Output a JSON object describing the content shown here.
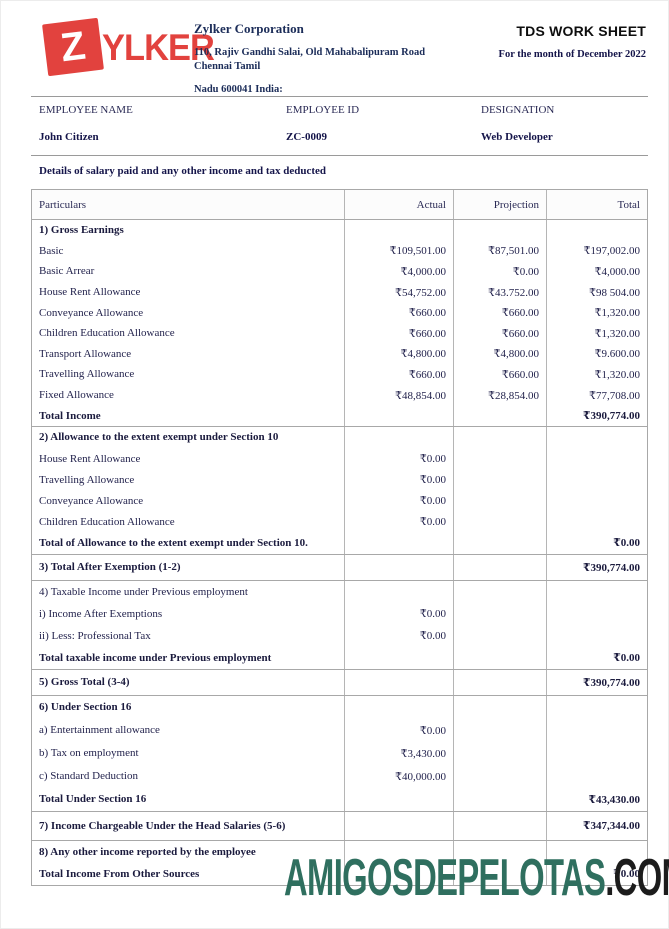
{
  "header": {
    "logo_z": "Z",
    "logo_text": "YLKER",
    "company_name": "Zylker Corporation",
    "address_line1": "110, Rajiv Gandhi Salai, Old Mahabalipuram Road Chennai Tamil",
    "address_line2": "Nadu 600041 India:",
    "doc_title": "TDS WORK SHEET",
    "doc_subtitle": "For the month of December 2022"
  },
  "employee": {
    "name_label": "EMPLOYEE NAME",
    "name": "John Citizen",
    "id_label": "EMPLOYEE ID",
    "id": "ZC-0009",
    "designation_label": "DESIGNATION",
    "designation": "Web Developer"
  },
  "details_note": "Details of salary paid and any other income and tax deducted",
  "table": {
    "columns": [
      "Particulars",
      "Actual",
      "Projection",
      "Total"
    ],
    "sections": [
      {
        "rows": [
          {
            "label": "1) Gross Earnings",
            "bold": true
          },
          {
            "label": "Basic",
            "actual": "₹109,501.00",
            "projection": "₹87,501.00",
            "total": "₹197,002.00"
          },
          {
            "label": "Basic Arrear",
            "actual": "₹4,000.00",
            "projection": "₹0.00",
            "total": "₹4,000.00"
          },
          {
            "label": "House Rent Allowance",
            "actual": "₹54,752.00",
            "projection": "₹43.752.00",
            "total": "₹98 504.00"
          },
          {
            "label": "Conveyance Allowance",
            "actual": "₹660.00",
            "projection": "₹660.00",
            "total": "₹1,320.00"
          },
          {
            "label": "Children Education Allowance",
            "actual": "₹660.00",
            "projection": "₹660.00",
            "total": "₹1,320.00"
          },
          {
            "label": "Transport Allowance",
            "actual": "₹4,800.00",
            "projection": "₹4,800.00",
            "total": "₹9.600.00"
          },
          {
            "label": "Travelling Allowance",
            "actual": "₹660.00",
            "projection": "₹660.00",
            "total": "₹1,320.00"
          },
          {
            "label": "Fixed Allowance",
            "actual": "₹48,854.00",
            "projection": "₹28,854.00",
            "total": "₹77,708.00"
          },
          {
            "label": "Total Income",
            "bold": true,
            "total": "₹390,774.00"
          }
        ]
      },
      {
        "rows": [
          {
            "label": "2) Allowance to the extent exempt under Section 10",
            "bold": true
          },
          {
            "label": "House Rent Allowance",
            "actual": "₹0.00"
          },
          {
            "label": "Travelling Allowance",
            "actual": "₹0.00"
          },
          {
            "label": "Conveyance Allowance",
            "actual": "₹0.00"
          },
          {
            "label": "Children Education Allowance",
            "actual": "₹0.00"
          },
          {
            "label": "Total of Allowance to the extent exempt under Section 10.",
            "bold": true,
            "total": "₹0.00"
          }
        ]
      },
      {
        "rows": [
          {
            "label": "3) Total After Exemption (1-2)",
            "bold": true,
            "total": "₹390,774.00"
          }
        ]
      },
      {
        "rows": [
          {
            "label": "4) Taxable Income under Previous employment"
          },
          {
            "label": "i) Income After Exemptions",
            "actual": "₹0.00"
          },
          {
            "label": "ii) Less: Professional Tax",
            "actual": "₹0.00"
          },
          {
            "label": "Total taxable income under Previous employment",
            "bold": true,
            "total": "₹0.00"
          }
        ]
      },
      {
        "rows": [
          {
            "label": "5) Gross Total (3-4)",
            "bold": true,
            "total": "₹390,774.00"
          }
        ]
      },
      {
        "rows": [
          {
            "label": "6) Under Section 16",
            "bold": true
          },
          {
            "label": "a) Entertainment allowance",
            "actual": "₹0.00"
          },
          {
            "label": "b) Tax on employment",
            "actual": "₹3,430.00"
          },
          {
            "label": "c) Standard Deduction",
            "actual": "₹40,000.00"
          },
          {
            "label": "Total Under Section 16",
            "bold": true,
            "total": "₹43,430.00"
          }
        ]
      },
      {
        "rows": [
          {
            "label": "7) Income Chargeable Under the Head Salaries (5-6)",
            "bold": true,
            "total": "₹347,344.00"
          }
        ]
      },
      {
        "rows": [
          {
            "label": "8) Any other income reported by the employee",
            "bold": true
          },
          {
            "label": "Total Income From Other Sources",
            "bold": true,
            "total": "₹0.00"
          }
        ]
      }
    ]
  },
  "watermark": {
    "green_text": "AMIGOSDEPELOTAS",
    "black_text": ".COM",
    "green_color": "#2f6f5f",
    "black_color": "#1c1c1c"
  },
  "colors": {
    "brand_red": "#e2423e",
    "text_navy": "#1c2d59",
    "table_border": "#a8a8a8"
  }
}
